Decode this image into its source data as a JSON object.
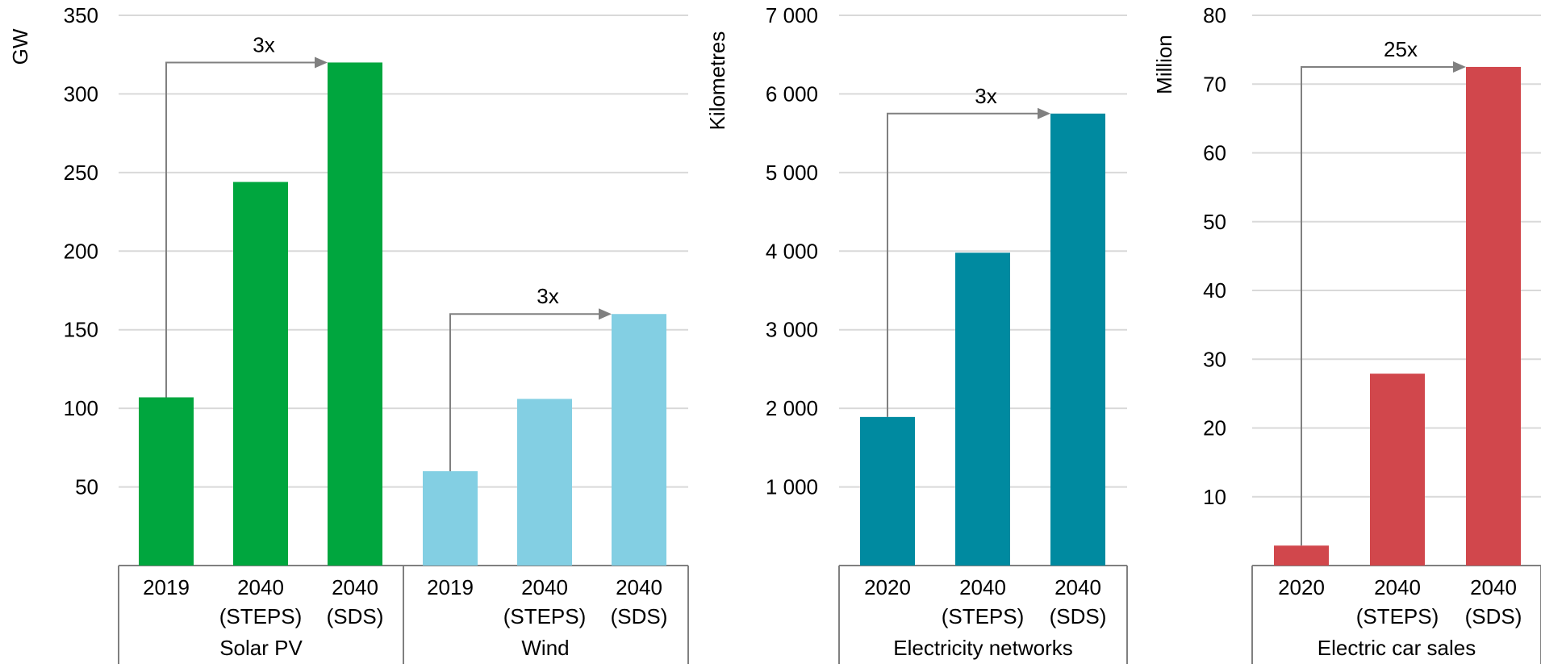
{
  "colors": {
    "solar": "#00a63e",
    "wind": "#83cfe3",
    "networks": "#008aa0",
    "cars": "#d1474c",
    "grid": "#d9d9d9",
    "arrow": "#808080",
    "axis": "#808080"
  },
  "chart_data": [
    {
      "type": "bar",
      "ylabel": "GW",
      "ylim": [
        0,
        350
      ],
      "yticks": [
        50,
        100,
        150,
        200,
        250,
        300,
        350
      ],
      "ytick_labels": [
        "50",
        "100",
        "150",
        "200",
        "250",
        "300",
        "350"
      ],
      "groups": [
        {
          "label": "Solar PV",
          "color": "#00a63e",
          "categories": [
            [
              "2019"
            ],
            [
              "2040",
              "(STEPS)"
            ],
            [
              "2040",
              "(SDS)"
            ]
          ],
          "values": [
            107,
            244,
            320
          ],
          "annotation": "3x"
        },
        {
          "label": "Wind",
          "color": "#83cfe3",
          "categories": [
            [
              "2019"
            ],
            [
              "2040",
              "(STEPS)"
            ],
            [
              "2040",
              "(SDS)"
            ]
          ],
          "values": [
            60,
            106,
            160
          ],
          "annotation": "3x"
        }
      ]
    },
    {
      "type": "bar",
      "ylabel": "Kilometres",
      "ylim": [
        0,
        7000
      ],
      "yticks": [
        1000,
        2000,
        3000,
        4000,
        5000,
        6000,
        7000
      ],
      "ytick_labels": [
        "1 000",
        "2 000",
        "3 000",
        "4 000",
        "5 000",
        "6 000",
        "7 000"
      ],
      "groups": [
        {
          "label": "Electricity networks",
          "color": "#008aa0",
          "categories": [
            [
              "2020"
            ],
            [
              "2040",
              "(STEPS)"
            ],
            [
              "2040",
              "(SDS)"
            ]
          ],
          "values": [
            1890,
            3980,
            5750
          ],
          "annotation": "3x"
        }
      ]
    },
    {
      "type": "bar",
      "ylabel": "Million",
      "ylim": [
        0,
        80
      ],
      "yticks": [
        10,
        20,
        30,
        40,
        50,
        60,
        70,
        80
      ],
      "ytick_labels": [
        "10",
        "20",
        "30",
        "40",
        "50",
        "60",
        "70",
        "80"
      ],
      "groups": [
        {
          "label": "Electric car sales",
          "color": "#d1474c",
          "categories": [
            [
              "2020"
            ],
            [
              "2040",
              "(STEPS)"
            ],
            [
              "2040",
              "(SDS)"
            ]
          ],
          "values": [
            2.9,
            27.9,
            72.5
          ],
          "annotation": "25x"
        }
      ]
    }
  ]
}
